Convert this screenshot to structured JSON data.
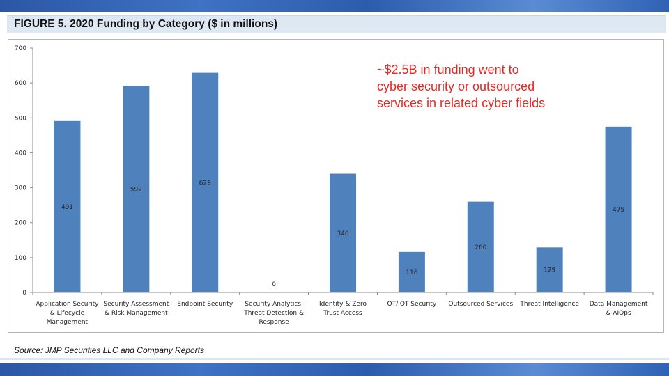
{
  "title": "FIGURE 5. 2020 Funding by Category ($ in millions)",
  "annotation": {
    "lines": [
      "~$2.5B in funding went to",
      "cyber security or outsourced",
      "services in related cyber fields"
    ]
  },
  "source": "Source: JMP Securities LLC and Company Reports",
  "colors": {
    "bar": "#4f81bd",
    "annotation": "#e32a24",
    "title_bar": "#dde8f3",
    "band": "#2f62b5"
  },
  "chart_data": {
    "type": "bar",
    "title": "",
    "xlabel": "",
    "ylabel": "",
    "ylim": [
      0,
      700
    ],
    "yticks": [
      0,
      100,
      200,
      300,
      400,
      500,
      600,
      700
    ],
    "grid": false,
    "legend": "none",
    "categories": [
      [
        "Application Security",
        "& Lifecycle",
        "Management"
      ],
      [
        "Security Assessment",
        "& Risk Management"
      ],
      [
        "Endpoint Security"
      ],
      [
        "Security Analytics,",
        "Threat Detection &",
        "Response"
      ],
      [
        "Identity & Zero",
        "Trust Access"
      ],
      [
        "OT/IOT Security"
      ],
      [
        "Outsourced Services"
      ],
      [
        "Threat Intelligence"
      ],
      [
        "Data Management",
        "& AIOps"
      ]
    ],
    "values": [
      491,
      592,
      629,
      0,
      340,
      116,
      260,
      129,
      475
    ],
    "data_labels": [
      "491",
      "592",
      "629",
      "0",
      "340",
      "116",
      "260",
      "129",
      "475"
    ]
  }
}
